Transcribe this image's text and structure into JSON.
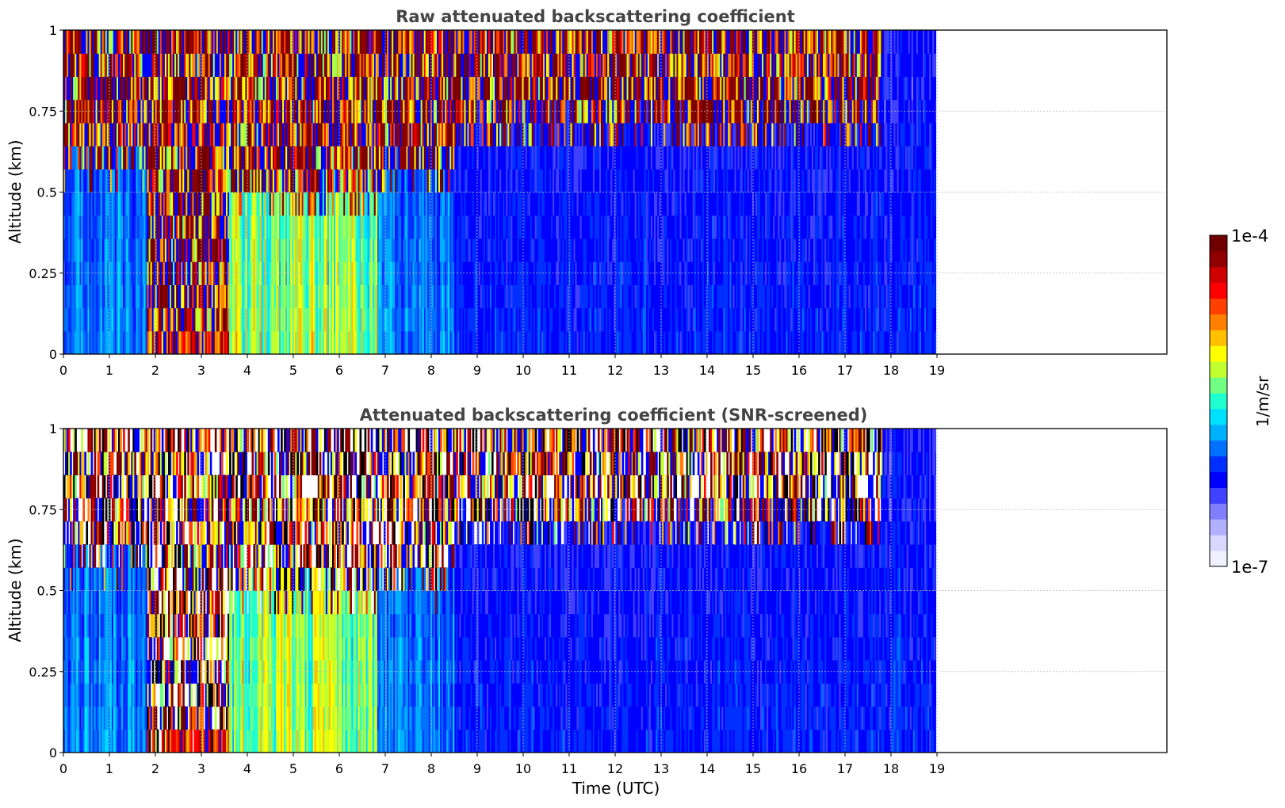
{
  "chart_data": [
    {
      "type": "heatmap",
      "title": "Raw attenuated backscattering coefficient",
      "xlabel": "",
      "ylabel": "Altitude (km)",
      "x_ticks": [
        "0",
        "1",
        "2",
        "3",
        "4",
        "5",
        "6",
        "7",
        "8",
        "9",
        "10",
        "11",
        "12",
        "13",
        "14",
        "15",
        "16",
        "17",
        "18",
        "19"
      ],
      "y_ticks": [
        "0",
        "0.25",
        "0.5",
        "0.75",
        "1"
      ],
      "xlim": [
        0,
        24
      ],
      "ylim": [
        0,
        1
      ],
      "data_end_hour": 19,
      "grid": true,
      "color_scale": "log",
      "features": [
        {
          "from": 0,
          "to": 1.8,
          "surface": "cyan-blue",
          "cloud_base_km": 0.55,
          "above_base": "red"
        },
        {
          "from": 1.8,
          "to": 3.6,
          "surface": "orange-red",
          "cloud_base_km": 0.0,
          "above_base": "red"
        },
        {
          "from": 3.6,
          "to": 6.8,
          "surface": "yellow-cyan",
          "cloud_base_km": 0.45,
          "above_base": "red"
        },
        {
          "from": 6.8,
          "to": 8.5,
          "surface": "cyan-blue",
          "cloud_base_km": 0.5,
          "above_base": "red"
        },
        {
          "from": 8.5,
          "to": 17.8,
          "surface": "blue",
          "cloud_base_km": 0.65,
          "above_base": "red-noise"
        },
        {
          "from": 17.8,
          "to": 19,
          "surface": "blue",
          "cloud_base_km": null,
          "above_base": "noise"
        }
      ]
    },
    {
      "type": "heatmap",
      "title": "Attenuated backscattering coefficient (SNR-screened)",
      "xlabel": "Time (UTC)",
      "ylabel": "Altitude (km)",
      "x_ticks": [
        "0",
        "1",
        "2",
        "3",
        "4",
        "5",
        "6",
        "7",
        "8",
        "9",
        "10",
        "11",
        "12",
        "13",
        "14",
        "15",
        "16",
        "17",
        "18",
        "19"
      ],
      "y_ticks": [
        "0",
        "0.25",
        "0.5",
        "0.75",
        "1"
      ],
      "xlim": [
        0,
        24
      ],
      "ylim": [
        0,
        1
      ],
      "data_end_hour": 19,
      "grid": true,
      "color_scale": "log",
      "screened": true
    }
  ],
  "colorbar": {
    "label": "1/m/sr",
    "max_label": "1e-4",
    "min_label": "1e-7",
    "placement": "right",
    "colors": [
      "#f0f0ff",
      "#d8d8ff",
      "#b0b0ff",
      "#8080ff",
      "#4040ff",
      "#0000ff",
      "#0030ff",
      "#0070ff",
      "#00b0ff",
      "#00e0ff",
      "#20ffd0",
      "#70ff80",
      "#c0ff30",
      "#ffff00",
      "#ffc000",
      "#ff8000",
      "#ff4000",
      "#ff0000",
      "#d00000",
      "#900000",
      "#700000"
    ]
  },
  "palette": {
    "blue": "#1b4dff",
    "red": "#c80000",
    "orange": "#ff8c00",
    "yellow": "#f0e000",
    "cyan": "#00c8ff"
  }
}
